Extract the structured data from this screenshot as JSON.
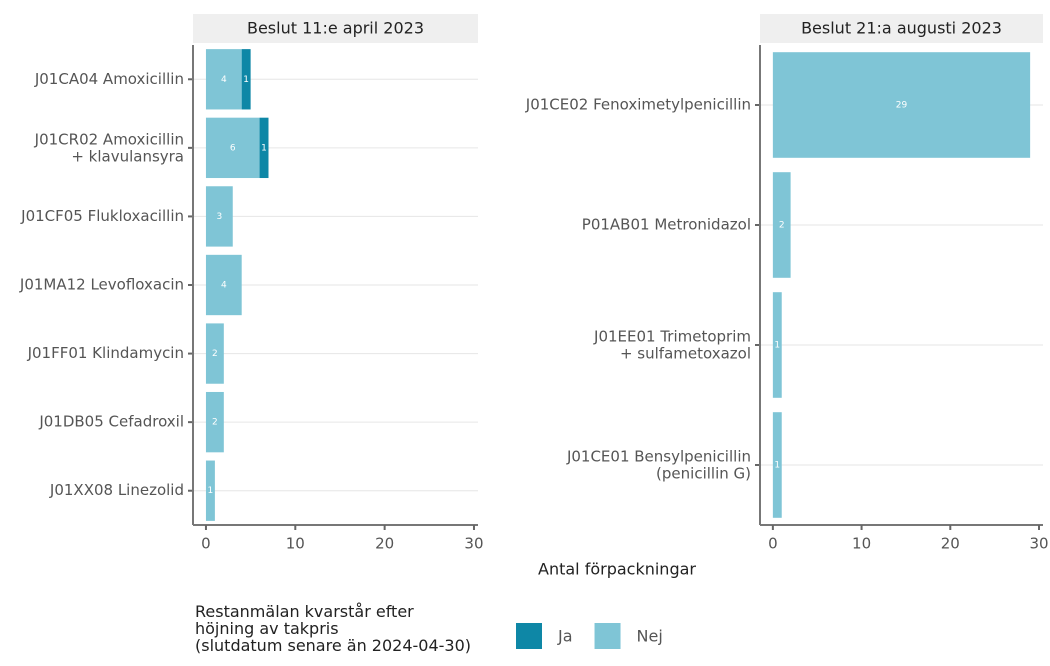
{
  "chart_data": {
    "type": "bar",
    "orientation": "horizontal",
    "stacked": true,
    "xlabel": "Antal förpackningar",
    "xlim": [
      -1.45,
      30.45
    ],
    "xticks": [
      0,
      10,
      20,
      30
    ],
    "grid": true,
    "legend_title": "Restanmälan kvarstår efter\nhöjning av takpris\n(slutdatum senare än 2024-04-30)",
    "legend": [
      {
        "name": "Ja",
        "color": "#0e87a6"
      },
      {
        "name": "Nej",
        "color": "#7fc5d6"
      }
    ],
    "panels": [
      {
        "title": "Beslut 11:e april 2023",
        "categories": [
          "J01CA04 Amoxicillin",
          "J01CR02 Amoxicillin\n+ klavulansyra",
          "J01CF05 Flukloxacillin",
          "J01MA12 Levofloxacin",
          "J01FF01 Klindamycin",
          "J01DB05 Cefadroxil",
          "J01XX08 Linezolid"
        ],
        "series": [
          {
            "values": [
              1,
              1,
              null,
              null,
              null,
              null,
              null
            ]
          },
          {
            "values": [
              4,
              6,
              3,
              4,
              2,
              2,
              1
            ]
          }
        ]
      },
      {
        "title": "Beslut 21:a augusti 2023",
        "categories": [
          "J01CE02 Fenoximetylpenicillin",
          "P01AB01 Metronidazol",
          "J01EE01 Trimetoprim\n+ sulfametoxazol",
          "J01CE01 Bensylpenicillin\n(penicillin G)"
        ],
        "series": [
          {
            "values": [
              null,
              null,
              null,
              null
            ]
          },
          {
            "values": [
              29,
              2,
              1,
              1
            ]
          }
        ]
      }
    ]
  }
}
